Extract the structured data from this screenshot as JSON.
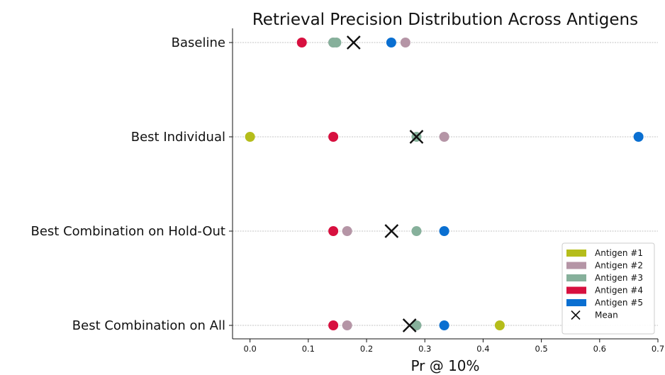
{
  "chart_data": {
    "type": "scatter",
    "title": "Retrieval Precision Distribution Across Antigens",
    "xlabel": "Pr @ 10%",
    "ylabel": "",
    "xlim": [
      -0.03,
      0.7
    ],
    "xticks": [
      0.0,
      0.1,
      0.2,
      0.3,
      0.4,
      0.5,
      0.6,
      0.7
    ],
    "xtick_labels": [
      "0.0",
      "0.1",
      "0.2",
      "0.3",
      "0.4",
      "0.5",
      "0.6",
      "0.7"
    ],
    "grid": "horizontal dashed at each category",
    "legend_position": "bottom-right",
    "categories": [
      "Baseline",
      "Best Individual",
      "Best Combination on Hold-Out",
      "Best Combination on All"
    ],
    "series": [
      {
        "name": "Antigen #1",
        "color": "#b5bd1b",
        "values": [
          null,
          0.0,
          null,
          0.4286
        ]
      },
      {
        "name": "Antigen #2",
        "color": "#b595a6",
        "values": [
          0.2667,
          0.3333,
          0.1667,
          0.1667
        ]
      },
      {
        "name": "Antigen #3",
        "color": "#86b09b",
        "values": [
          0.1429,
          0.2857,
          0.2857,
          0.2857
        ]
      },
      {
        "name": "Antigen #4",
        "color": "#d7103f",
        "values": [
          0.0889,
          0.1429,
          0.1429,
          0.1429
        ]
      },
      {
        "name": "Antigen #5",
        "color": "#0a6fd1",
        "values": [
          0.2424,
          0.6667,
          0.3333,
          0.3333
        ]
      }
    ],
    "extra_points": [
      {
        "series": "Antigen #2",
        "category": "Baseline",
        "value": 0.1429
      },
      {
        "series": "Antigen #3",
        "category": "Baseline",
        "value": 0.1481
      }
    ],
    "mean": {
      "name": "Mean",
      "marker": "x",
      "color": "#111111",
      "values": [
        0.1778,
        0.2857,
        0.2429,
        0.2738
      ]
    }
  }
}
